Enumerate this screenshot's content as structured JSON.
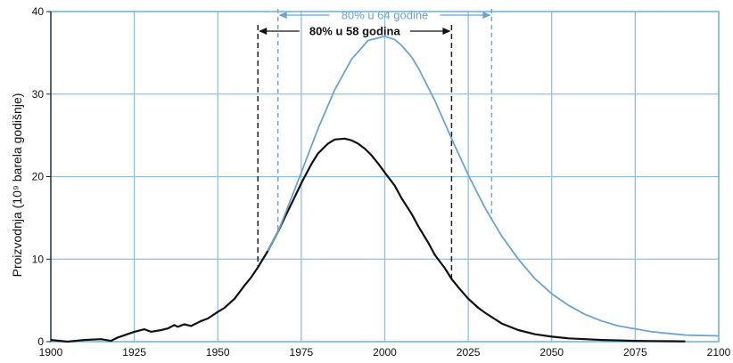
{
  "chart_data": {
    "type": "line",
    "title": "",
    "xlabel": "",
    "ylabel": "Proizvodnja (10⁹ barela godišnje)",
    "xlim": [
      1900,
      2100
    ],
    "ylim": [
      0,
      40
    ],
    "xticks": [
      1900,
      1925,
      1950,
      1975,
      2000,
      2025,
      2050,
      2075,
      2100
    ],
    "yticks": [
      0,
      10,
      20,
      30,
      40
    ],
    "grid": true,
    "colors": {
      "black": "#111111",
      "blue": "#6aa4d2",
      "grid": "#8fc0e2",
      "frame": "#7fb6dc"
    },
    "series": [
      {
        "color": "black",
        "x": [
          1900,
          1905,
          1910,
          1915,
          1918,
          1920,
          1925,
          1928,
          1930,
          1933,
          1935,
          1937,
          1938,
          1940,
          1942,
          1945,
          1947,
          1950,
          1952,
          1955,
          1958,
          1960,
          1962,
          1965,
          1968,
          1970,
          1973,
          1975,
          1978,
          1980,
          1983,
          1985,
          1988,
          1990,
          1992,
          1994,
          1996,
          1998,
          2000,
          2003,
          2005,
          2008,
          2010,
          2013,
          2015,
          2018,
          2020,
          2022,
          2025,
          2028,
          2030,
          2035,
          2040,
          2045,
          2050,
          2055,
          2060,
          2065,
          2070,
          2075,
          2080,
          2085,
          2090
        ],
        "y": [
          0.2,
          0.0,
          0.2,
          0.3,
          0.1,
          0.5,
          1.2,
          1.5,
          1.2,
          1.4,
          1.6,
          2.0,
          1.8,
          2.1,
          1.9,
          2.5,
          2.8,
          3.6,
          4.1,
          5.2,
          6.8,
          7.8,
          9.0,
          11.0,
          13.3,
          15.0,
          17.5,
          19.2,
          21.5,
          22.8,
          24.0,
          24.5,
          24.6,
          24.4,
          24.0,
          23.4,
          22.6,
          21.6,
          20.5,
          18.9,
          17.4,
          15.5,
          14.0,
          12.0,
          10.5,
          8.9,
          7.6,
          6.6,
          5.2,
          4.1,
          3.5,
          2.2,
          1.4,
          0.9,
          0.6,
          0.4,
          0.3,
          0.2,
          0.15,
          0.1,
          0.08,
          0.05,
          0.03
        ]
      },
      {
        "color": "blue",
        "x": [
          1965,
          1968,
          1970,
          1975,
          1980,
          1985,
          1990,
          1995,
          2000,
          2003,
          2005,
          2008,
          2010,
          2015,
          2020,
          2025,
          2030,
          2035,
          2040,
          2045,
          2050,
          2055,
          2060,
          2065,
          2070,
          2080,
          2090,
          2100
        ],
        "y": [
          11.0,
          13.3,
          15.3,
          20.5,
          25.8,
          30.5,
          34.2,
          36.5,
          37.0,
          36.6,
          35.9,
          34.5,
          33.2,
          29.2,
          24.6,
          20.2,
          16.2,
          12.8,
          10.0,
          7.6,
          5.8,
          4.4,
          3.3,
          2.5,
          1.9,
          1.2,
          0.8,
          0.7
        ]
      }
    ],
    "annotations": [
      {
        "text": "80% u 58 godina",
        "color": "black",
        "x_start": 1962,
        "x_end": 2020
      },
      {
        "text": "80% u 64 godine",
        "color": "blue",
        "x_start": 1968,
        "x_end": 2032
      }
    ]
  }
}
